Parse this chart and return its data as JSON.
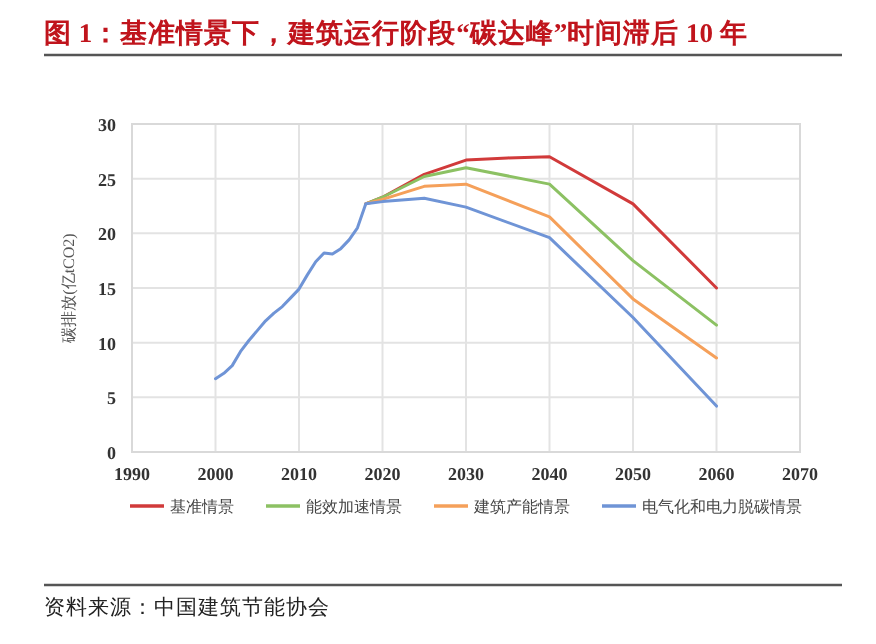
{
  "chart_data": {
    "type": "line",
    "title": "图 1：基准情景下，建筑运行阶段“碳达峰”时间滞后 10 年",
    "ylabel": "碳排放(亿tCO2)",
    "xlim": [
      1990,
      2070
    ],
    "ylim": [
      0,
      30
    ],
    "xticks": [
      1990,
      2000,
      2010,
      2020,
      2030,
      2040,
      2050,
      2060,
      2070
    ],
    "yticks": [
      0,
      5,
      10,
      15,
      20,
      25,
      30
    ],
    "grid": true,
    "legend": "bottom",
    "series": [
      {
        "name": "基准情景",
        "color": "#d13a3a",
        "x": [
          2018,
          2020,
          2025,
          2030,
          2035,
          2040,
          2050,
          2060
        ],
        "values": [
          22.7,
          23.3,
          25.4,
          26.7,
          26.9,
          27.0,
          22.7,
          15.0
        ]
      },
      {
        "name": "能效加速情景",
        "color": "#8cc163",
        "x": [
          2018,
          2020,
          2025,
          2030,
          2040,
          2050,
          2060
        ],
        "values": [
          22.7,
          23.3,
          25.2,
          26.0,
          24.5,
          17.5,
          11.6
        ]
      },
      {
        "name": "建筑产能情景",
        "color": "#f5a05a",
        "x": [
          2018,
          2020,
          2025,
          2030,
          2040,
          2050,
          2060
        ],
        "values": [
          22.7,
          23.1,
          24.3,
          24.5,
          21.5,
          14.0,
          8.6
        ]
      },
      {
        "name": "电气化和电力脱碳情景",
        "color": "#6f94d6",
        "x": [
          2000,
          2001,
          2002,
          2003,
          2004,
          2005,
          2006,
          2007,
          2008,
          2009,
          2010,
          2011,
          2012,
          2013,
          2014,
          2015,
          2016,
          2017,
          2018,
          2020,
          2025,
          2030,
          2040,
          2050,
          2060
        ],
        "values": [
          6.7,
          7.2,
          7.9,
          9.2,
          10.2,
          11.1,
          12.0,
          12.7,
          13.3,
          14.1,
          14.9,
          16.2,
          17.4,
          18.2,
          18.1,
          18.6,
          19.4,
          20.5,
          22.7,
          22.9,
          23.2,
          22.4,
          19.6,
          12.3,
          4.2
        ]
      }
    ],
    "annotations": [
      "资料来源：中国建筑节能协会"
    ]
  }
}
